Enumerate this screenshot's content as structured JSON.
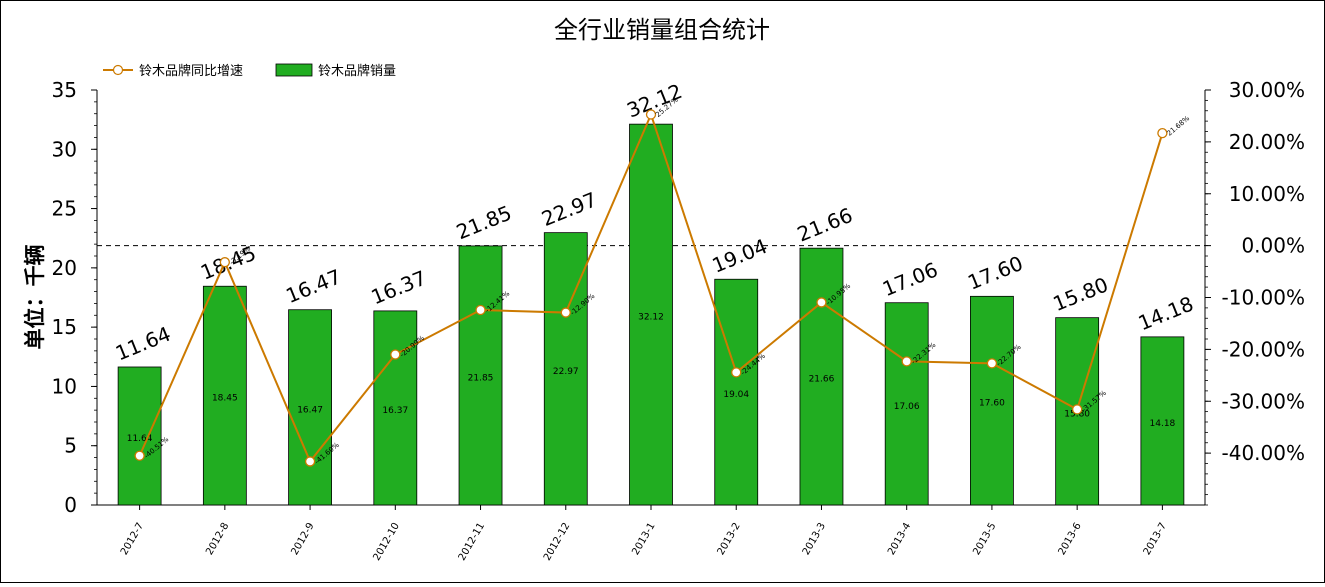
{
  "chart_data": {
    "type": "bar+line",
    "title": "全行业销量组合统计",
    "ylabel": "单位：千辆",
    "categories": [
      "2012-7",
      "2012-8",
      "2012-9",
      "2012-10",
      "2012-11",
      "2012-12",
      "2013-1",
      "2013-2",
      "2013-3",
      "2013-4",
      "2013-5",
      "2013-6",
      "2013-7"
    ],
    "y_left": {
      "ylim": [
        0,
        35
      ],
      "ticks": [
        "0",
        "5",
        "10",
        "15",
        "20",
        "25",
        "30",
        "35"
      ]
    },
    "y_right": {
      "ylim": [
        -50,
        30
      ],
      "ticks": [
        "-40.00%",
        "-30.00%",
        "-20.00%",
        "-10.00%",
        "0.00%",
        "10.00%",
        "20.00%",
        "30.00%"
      ],
      "tick_values": [
        -40,
        -30,
        -20,
        -10,
        0,
        10,
        20,
        30
      ]
    },
    "legend": {
      "position": "top-left"
    },
    "series": [
      {
        "name": "铃木品牌同比增速",
        "kind": "line",
        "axis": "right",
        "color": "#cc7a00",
        "values": [
          -40.51,
          -3.19,
          -41.6,
          -20.99,
          -12.41,
          -12.9,
          25.27,
          -24.44,
          -10.95,
          -22.31,
          -22.7,
          -31.57,
          21.68
        ],
        "labels": [
          "-40.51%",
          "-3.19%",
          "-41.60%",
          "-20.99%",
          "-12.41%",
          "-12.90%",
          "25.27%",
          "-24.44%",
          "-10.95%",
          "-22.31%",
          "-22.70%",
          "-31.57%",
          "21.68%"
        ]
      },
      {
        "name": "铃木品牌销量",
        "kind": "bar",
        "axis": "left",
        "color": "#21ad21",
        "values": [
          11.64,
          18.45,
          16.47,
          16.37,
          21.85,
          22.97,
          32.12,
          19.04,
          21.66,
          17.06,
          17.6,
          15.8,
          14.18
        ],
        "labels": [
          "11.64",
          "18.45",
          "16.47",
          "16.37",
          "21.85",
          "22.97",
          "32.12",
          "19.04",
          "21.66",
          "17.06",
          "17.60",
          "15.80",
          "14.18"
        ]
      }
    ],
    "reference_line": {
      "axis": "right",
      "value": 0,
      "style": "dashed"
    }
  }
}
